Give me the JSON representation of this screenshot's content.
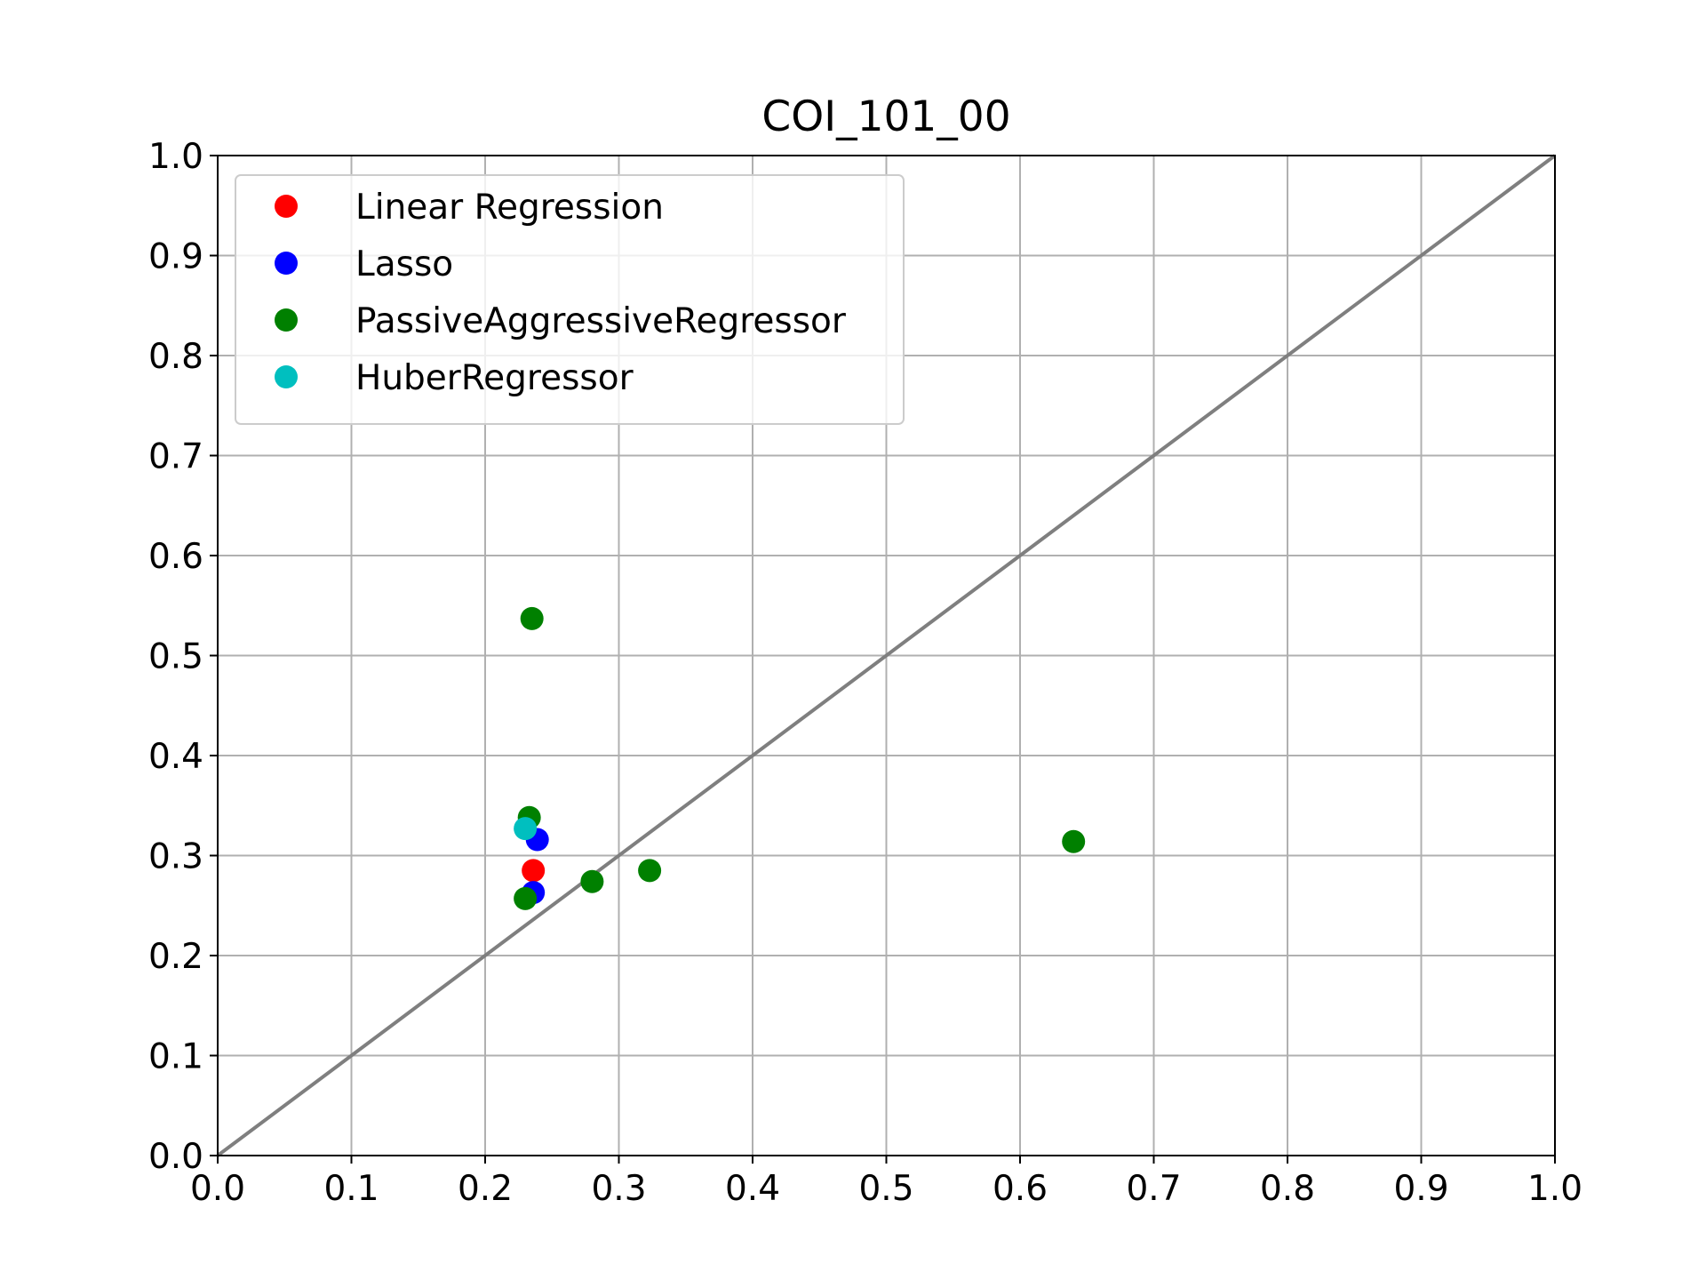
{
  "chart_data": {
    "type": "scatter",
    "title": "COI_101_00",
    "xlabel": "",
    "ylabel": "",
    "xlim": [
      0.0,
      1.0
    ],
    "ylim": [
      0.0,
      1.0
    ],
    "x_ticks": [
      "0.0",
      "0.1",
      "0.2",
      "0.3",
      "0.4",
      "0.5",
      "0.6",
      "0.7",
      "0.8",
      "0.9",
      "1.0"
    ],
    "y_ticks": [
      "0.0",
      "0.1",
      "0.2",
      "0.3",
      "0.4",
      "0.5",
      "0.6",
      "0.7",
      "0.8",
      "0.9",
      "1.0"
    ],
    "grid": true,
    "legend_position": "top-left",
    "reference_line": {
      "from": [
        0.0,
        0.0
      ],
      "to": [
        1.0,
        1.0
      ],
      "color": "#7f7f7f"
    },
    "series": [
      {
        "name": "Linear Regression",
        "color": "#ff0000",
        "points": [
          [
            0.236,
            0.285
          ]
        ]
      },
      {
        "name": "Lasso",
        "color": "#0000ff",
        "points": [
          [
            0.239,
            0.316
          ],
          [
            0.236,
            0.263
          ]
        ]
      },
      {
        "name": "PassiveAggressiveRegressor",
        "color": "#008000",
        "points": [
          [
            0.235,
            0.537
          ],
          [
            0.233,
            0.338
          ],
          [
            0.23,
            0.257
          ],
          [
            0.28,
            0.274
          ],
          [
            0.323,
            0.285
          ],
          [
            0.64,
            0.314
          ]
        ]
      },
      {
        "name": "HuberRegressor",
        "color": "#00bfbf",
        "points": [
          [
            0.23,
            0.327
          ]
        ]
      }
    ]
  }
}
